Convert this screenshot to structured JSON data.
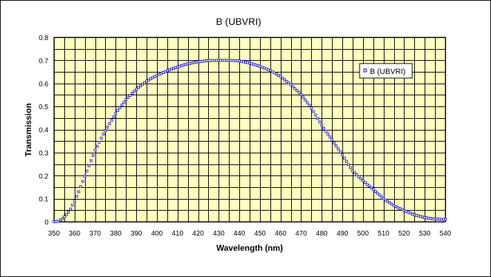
{
  "chart_data": {
    "type": "scatter",
    "title": "B (UBVRI)",
    "xlabel": "Wavelength (nm)",
    "ylabel": "Transmission",
    "xlim": [
      350,
      540
    ],
    "ylim": [
      0,
      0.8
    ],
    "x_ticks": [
      350,
      360,
      370,
      380,
      390,
      400,
      410,
      420,
      430,
      440,
      450,
      460,
      470,
      480,
      490,
      500,
      510,
      520,
      530,
      540
    ],
    "x_tick_labels": [
      "350",
      "360",
      "370",
      "380",
      "390",
      "400",
      "410",
      "420",
      "430",
      "440",
      "450",
      "460",
      "470",
      "480",
      "490",
      "500",
      "510",
      "520",
      "530",
      "540"
    ],
    "y_ticks": [
      0,
      0.1,
      0.2,
      0.3,
      0.4,
      0.5,
      0.6,
      0.7,
      0.8
    ],
    "y_tick_labels": [
      "0",
      "0.1",
      "0.2",
      "0.3",
      "0.4",
      "0.5",
      "0.6",
      "0.7",
      "0.8"
    ],
    "grid": true,
    "legend_position": "top-right",
    "colors": {
      "plot_background": "#ffffc0",
      "series": "#0000cc",
      "grid": "#000000"
    },
    "series": [
      {
        "name": "B (UBVRI)",
        "x": [
          350,
          352,
          354,
          356,
          358,
          360,
          362,
          364,
          366,
          368,
          370,
          372,
          374,
          376,
          378,
          380,
          385,
          390,
          395,
          400,
          405,
          410,
          415,
          420,
          425,
          430,
          435,
          440,
          445,
          450,
          455,
          460,
          465,
          470,
          475,
          480,
          485,
          490,
          495,
          500,
          505,
          510,
          515,
          520,
          525,
          530,
          535,
          540
        ],
        "y": [
          0.0,
          0.002,
          0.012,
          0.03,
          0.055,
          0.09,
          0.13,
          0.175,
          0.22,
          0.265,
          0.31,
          0.345,
          0.38,
          0.41,
          0.44,
          0.47,
          0.53,
          0.575,
          0.61,
          0.635,
          0.655,
          0.672,
          0.685,
          0.694,
          0.699,
          0.7,
          0.7,
          0.698,
          0.688,
          0.674,
          0.656,
          0.63,
          0.594,
          0.552,
          0.493,
          0.418,
          0.355,
          0.29,
          0.22,
          0.178,
          0.14,
          0.1,
          0.07,
          0.048,
          0.03,
          0.018,
          0.012,
          0.01
        ]
      }
    ]
  }
}
